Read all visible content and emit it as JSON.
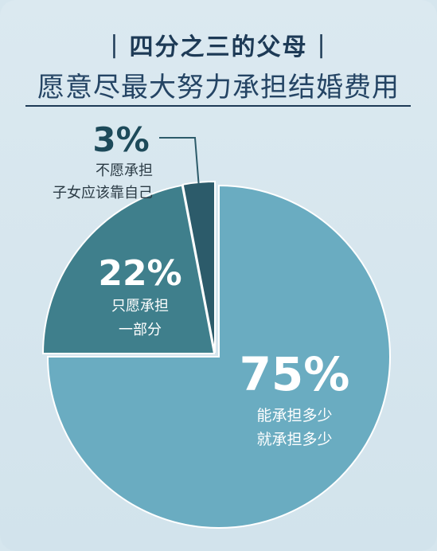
{
  "header": {
    "title": "四分之三的父母",
    "bar_left": "|",
    "bar_right": "|",
    "subtitle": "愿意尽最大努力承担结婚费用"
  },
  "colors": {
    "background": "#d6e6ee",
    "slice_large": "#6aacc1",
    "slice_medium": "#3f7f8c",
    "slice_small": "#2c5b6a",
    "title": "#1d3a56"
  },
  "chart_data": {
    "type": "pie",
    "title": "四分之三的父母",
    "subtitle": "愿意尽最大努力承担结婚费用",
    "slices": [
      {
        "value": 75,
        "label": "75%",
        "desc": [
          "能承担多少",
          "就承担多少"
        ]
      },
      {
        "value": 22,
        "label": "22%",
        "desc": [
          "只愿承担",
          "一部分"
        ]
      },
      {
        "value": 3,
        "label": "3%",
        "desc": [
          "不愿承担",
          "子女应该靠自己"
        ]
      }
    ]
  }
}
